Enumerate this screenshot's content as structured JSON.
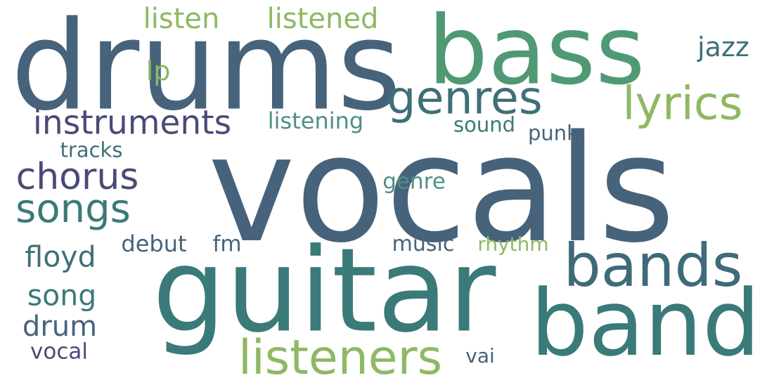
{
  "words": [
    {
      "key": "vocals",
      "text": "vocals",
      "color": "#47637b"
    },
    {
      "key": "drums",
      "text": "drums",
      "color": "#47637b"
    },
    {
      "key": "guitar",
      "text": "guitar",
      "color": "#3a7a78"
    },
    {
      "key": "bass",
      "text": "bass",
      "color": "#4f9a74"
    },
    {
      "key": "band",
      "text": "band",
      "color": "#3a7a78"
    },
    {
      "key": "bands",
      "text": "bands",
      "color": "#3f6a7a"
    },
    {
      "key": "lyrics",
      "text": "lyrics",
      "color": "#8fb863"
    },
    {
      "key": "genres",
      "text": "genres",
      "color": "#3f6f78"
    },
    {
      "key": "listeners",
      "text": "listeners",
      "color": "#8fb863"
    },
    {
      "key": "songs",
      "text": "songs",
      "color": "#3a7a78"
    },
    {
      "key": "chorus",
      "text": "chorus",
      "color": "#4a4a78"
    },
    {
      "key": "instruments",
      "text": "instruments",
      "color": "#4a4a78"
    },
    {
      "key": "listened",
      "text": "listened",
      "color": "#8fb863"
    },
    {
      "key": "listen",
      "text": "listen",
      "color": "#8fb863"
    },
    {
      "key": "floyd",
      "text": "floyd",
      "color": "#3f6f78"
    },
    {
      "key": "song",
      "text": "song",
      "color": "#3a7a78"
    },
    {
      "key": "drum",
      "text": "drum",
      "color": "#47637b"
    },
    {
      "key": "jazz",
      "text": "jazz",
      "color": "#3f6f78"
    },
    {
      "key": "lp",
      "text": "lp",
      "color": "#8fb863"
    },
    {
      "key": "listening",
      "text": "listening",
      "color": "#4f8f86"
    },
    {
      "key": "debut",
      "text": "debut",
      "color": "#47637b"
    },
    {
      "key": "vocal",
      "text": "vocal",
      "color": "#4a4a78"
    },
    {
      "key": "tracks",
      "text": "tracks",
      "color": "#3f6f78"
    },
    {
      "key": "sound",
      "text": "sound",
      "color": "#3a7a78"
    },
    {
      "key": "genre",
      "text": "genre",
      "color": "#4f8f86"
    },
    {
      "key": "fm",
      "text": "fm",
      "color": "#47637b"
    },
    {
      "key": "punk",
      "text": "punk",
      "color": "#47637b"
    },
    {
      "key": "music",
      "text": "music",
      "color": "#47637b"
    },
    {
      "key": "rhythm",
      "text": "rhythm",
      "color": "#8fb863"
    },
    {
      "key": "vai",
      "text": "vai",
      "color": "#47637b"
    }
  ]
}
